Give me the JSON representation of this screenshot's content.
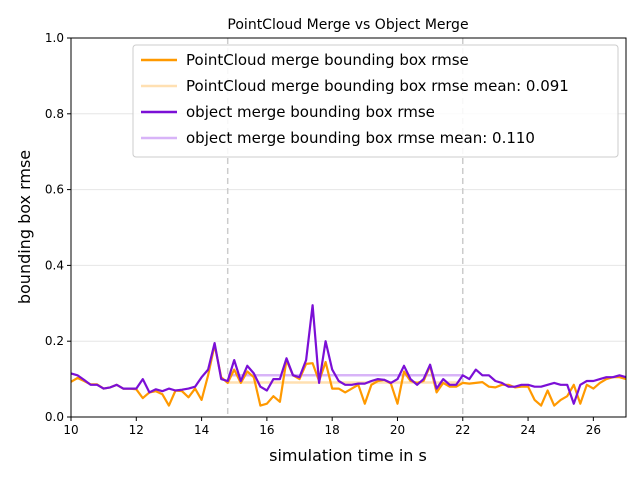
{
  "chart_data": {
    "type": "line",
    "title": "PointCloud Merge vs Object Merge",
    "xlabel": "simulation time in s",
    "ylabel": "bounding box rmse",
    "xlim": [
      10,
      27
    ],
    "ylim": [
      0,
      1.0
    ],
    "xticks": [
      "10",
      "12",
      "14",
      "16",
      "18",
      "20",
      "22",
      "24",
      "26"
    ],
    "yticks": [
      "0.0",
      "0.2",
      "0.4",
      "0.6",
      "0.8",
      "1.0"
    ],
    "grid": "horizontal",
    "legend_position": "top-right",
    "vlines": [
      {
        "x": 14.8,
        "color": "#cccccc"
      },
      {
        "x": 22.0,
        "color": "#cccccc"
      }
    ],
    "series": [
      {
        "name": "PointCloud merge bounding box rmse",
        "color": "#ff9900",
        "x": [
          10.0,
          10.2,
          10.4,
          10.6,
          10.8,
          11.0,
          11.2,
          11.4,
          11.6,
          11.8,
          12.0,
          12.2,
          12.4,
          12.6,
          12.8,
          13.0,
          13.2,
          13.4,
          13.6,
          13.8,
          14.0,
          14.2,
          14.4,
          14.6,
          14.8,
          15.0,
          15.2,
          15.4,
          15.6,
          15.8,
          16.0,
          16.2,
          16.4,
          16.6,
          16.8,
          17.0,
          17.2,
          17.4,
          17.6,
          17.8,
          18.0,
          18.2,
          18.4,
          18.6,
          18.8,
          19.0,
          19.2,
          19.4,
          19.6,
          19.8,
          20.0,
          20.2,
          20.4,
          20.6,
          20.8,
          21.0,
          21.2,
          21.4,
          21.6,
          21.8,
          22.0,
          22.2,
          22.4,
          22.6,
          22.8,
          23.0,
          23.2,
          23.4,
          23.6,
          23.8,
          24.0,
          24.2,
          24.4,
          24.6,
          24.8,
          25.0,
          25.2,
          25.4,
          25.6,
          25.8,
          26.0,
          26.2,
          26.4,
          26.6,
          26.8,
          27.0
        ],
        "values": [
          0.093,
          0.103,
          0.095,
          0.086,
          0.086,
          0.075,
          0.078,
          0.085,
          0.075,
          0.075,
          0.073,
          0.05,
          0.065,
          0.068,
          0.06,
          0.03,
          0.07,
          0.068,
          0.052,
          0.075,
          0.045,
          0.11,
          0.19,
          0.105,
          0.09,
          0.125,
          0.09,
          0.12,
          0.105,
          0.03,
          0.035,
          0.055,
          0.04,
          0.15,
          0.11,
          0.1,
          0.14,
          0.142,
          0.095,
          0.145,
          0.075,
          0.075,
          0.065,
          0.075,
          0.085,
          0.035,
          0.085,
          0.095,
          0.098,
          0.088,
          0.035,
          0.12,
          0.095,
          0.09,
          0.095,
          0.135,
          0.065,
          0.09,
          0.08,
          0.08,
          0.09,
          0.088,
          0.09,
          0.092,
          0.08,
          0.078,
          0.085,
          0.085,
          0.078,
          0.08,
          0.08,
          0.045,
          0.03,
          0.07,
          0.03,
          0.045,
          0.055,
          0.085,
          0.035,
          0.085,
          0.075,
          0.09,
          0.1,
          0.105,
          0.105,
          0.1
        ]
      },
      {
        "name": "PointCloud merge bounding box rmse mean: 0.091",
        "color": "#ffe0b2",
        "x": [
          10.0,
          27.0
        ],
        "values": [
          0.091,
          0.091
        ],
        "segments": [
          [
            14.8,
            22.0
          ]
        ]
      },
      {
        "name": "object merge bounding box rmse",
        "color": "#7b0fd6",
        "x": [
          10.0,
          10.2,
          10.4,
          10.6,
          10.8,
          11.0,
          11.2,
          11.4,
          11.6,
          11.8,
          12.0,
          12.2,
          12.4,
          12.6,
          12.8,
          13.0,
          13.2,
          13.4,
          13.6,
          13.8,
          14.0,
          14.2,
          14.4,
          14.6,
          14.8,
          15.0,
          15.2,
          15.4,
          15.6,
          15.8,
          16.0,
          16.2,
          16.4,
          16.6,
          16.8,
          17.0,
          17.2,
          17.4,
          17.6,
          17.8,
          18.0,
          18.2,
          18.4,
          18.6,
          18.8,
          19.0,
          19.2,
          19.4,
          19.6,
          19.8,
          20.0,
          20.2,
          20.4,
          20.6,
          20.8,
          21.0,
          21.2,
          21.4,
          21.6,
          21.8,
          22.0,
          22.2,
          22.4,
          22.6,
          22.8,
          23.0,
          23.2,
          23.4,
          23.6,
          23.8,
          24.0,
          24.2,
          24.4,
          24.6,
          24.8,
          25.0,
          25.2,
          25.4,
          25.6,
          25.8,
          26.0,
          26.2,
          26.4,
          26.6,
          26.8,
          27.0
        ],
        "values": [
          0.115,
          0.11,
          0.098,
          0.085,
          0.085,
          0.075,
          0.078,
          0.085,
          0.075,
          0.075,
          0.075,
          0.1,
          0.065,
          0.073,
          0.068,
          0.075,
          0.07,
          0.072,
          0.075,
          0.08,
          0.105,
          0.125,
          0.195,
          0.1,
          0.095,
          0.15,
          0.095,
          0.135,
          0.115,
          0.08,
          0.07,
          0.1,
          0.1,
          0.155,
          0.11,
          0.105,
          0.15,
          0.295,
          0.09,
          0.2,
          0.125,
          0.095,
          0.085,
          0.085,
          0.088,
          0.088,
          0.095,
          0.1,
          0.098,
          0.09,
          0.1,
          0.135,
          0.1,
          0.085,
          0.1,
          0.138,
          0.075,
          0.1,
          0.085,
          0.085,
          0.11,
          0.1,
          0.125,
          0.11,
          0.11,
          0.095,
          0.09,
          0.08,
          0.08,
          0.085,
          0.085,
          0.08,
          0.08,
          0.085,
          0.09,
          0.085,
          0.085,
          0.035,
          0.085,
          0.095,
          0.095,
          0.1,
          0.105,
          0.105,
          0.11,
          0.105
        ]
      },
      {
        "name": "object merge bounding box rmse mean: 0.110",
        "color": "#d8b4f8",
        "x": [
          10.0,
          27.0
        ],
        "values": [
          0.11,
          0.11
        ],
        "segments": [
          [
            14.8,
            22.0
          ]
        ]
      }
    ]
  }
}
